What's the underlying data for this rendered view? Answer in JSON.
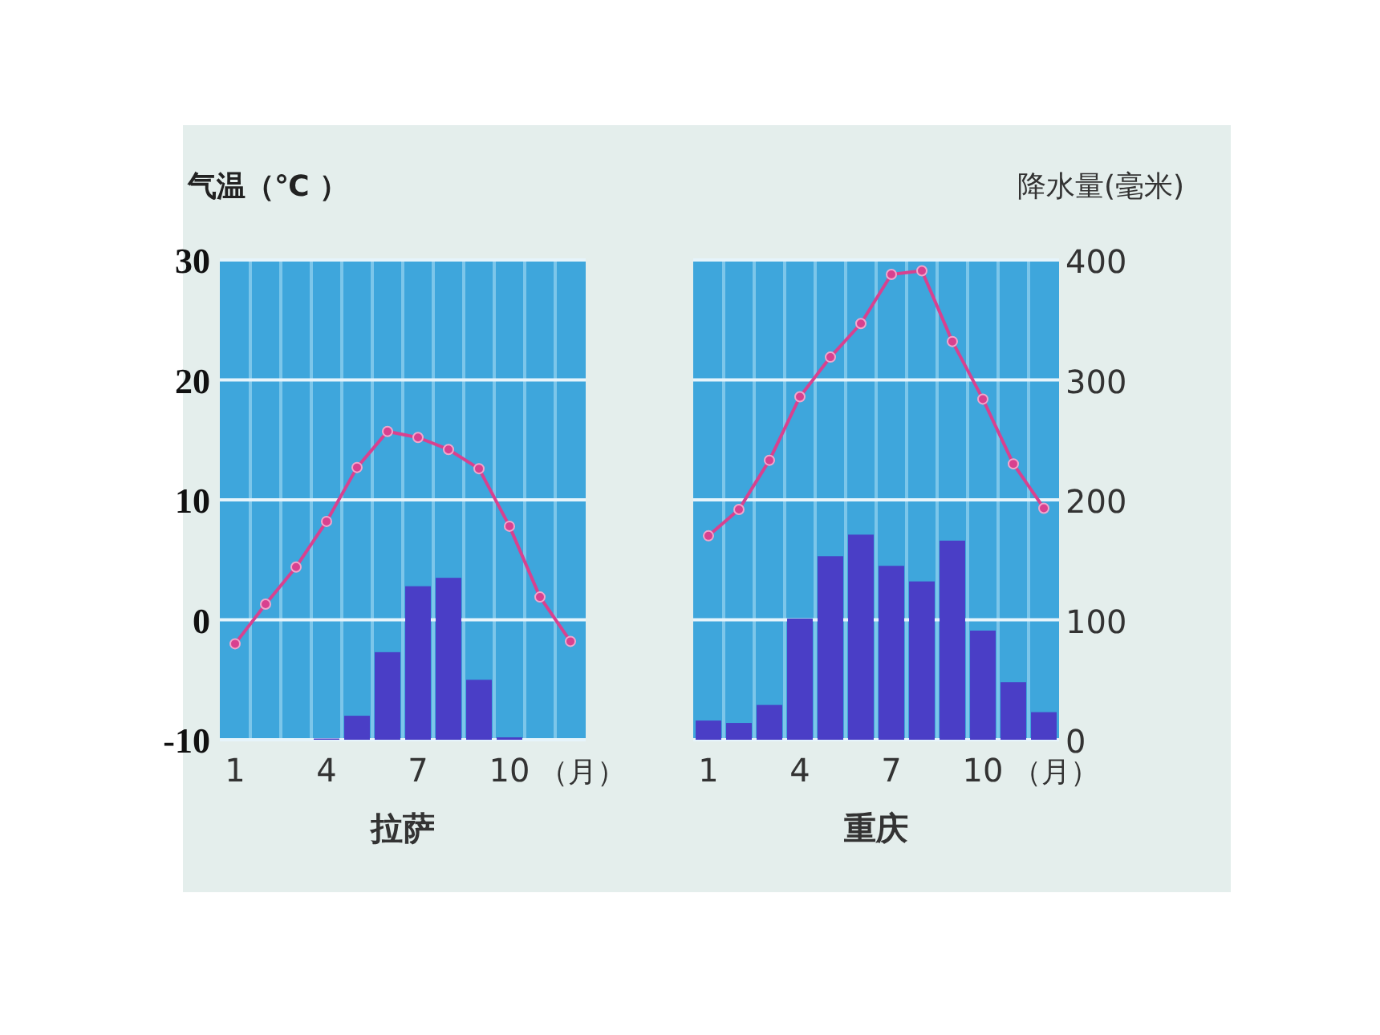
{
  "chart_data": [
    {
      "type": "bar",
      "title": "拉萨",
      "xlabel": "（月）",
      "ylabel": "气温（℃ ）",
      "categories": [
        "1",
        null,
        null,
        "4",
        null,
        null,
        "7",
        null,
        null,
        "10",
        null,
        null
      ],
      "ylim": [
        -10,
        30
      ],
      "yticks": [
        -10,
        0,
        10,
        20,
        30
      ],
      "y2lim": [
        0,
        400
      ],
      "grid": "y",
      "marker": "circle",
      "series": [
        {
          "axis": "y2",
          "color": "#4a3ec6",
          "values": [
            0,
            0,
            0,
            1,
            20,
            73,
            128,
            135,
            50,
            2,
            0,
            0
          ]
        },
        {
          "type": "line",
          "axis": "y",
          "color": "#d8418f",
          "values": [
            -2.0,
            1.3,
            4.4,
            8.2,
            12.7,
            15.7,
            15.2,
            14.2,
            12.6,
            7.8,
            1.9,
            -1.8
          ]
        }
      ]
    },
    {
      "type": "bar",
      "title": "重庆",
      "xlabel": "（月）",
      "y2label": "降水量(毫米)",
      "categories": [
        "1",
        null,
        null,
        "4",
        null,
        null,
        "7",
        null,
        null,
        "10",
        null,
        null
      ],
      "ylim": [
        -10,
        30
      ],
      "y2lim": [
        0,
        400
      ],
      "y2ticks": [
        0,
        100,
        200,
        300,
        400
      ],
      "grid": "y",
      "marker": "circle",
      "series": [
        {
          "axis": "y2",
          "color": "#4a3ec6",
          "values": [
            16,
            14,
            29,
            101,
            153,
            171,
            145,
            132,
            166,
            91,
            48,
            23
          ]
        },
        {
          "type": "line",
          "axis": "y",
          "color": "#d8418f",
          "values": [
            7.0,
            9.2,
            13.3,
            18.6,
            21.9,
            24.7,
            28.8,
            29.1,
            23.2,
            18.4,
            13.0,
            9.3
          ]
        }
      ]
    }
  ]
}
